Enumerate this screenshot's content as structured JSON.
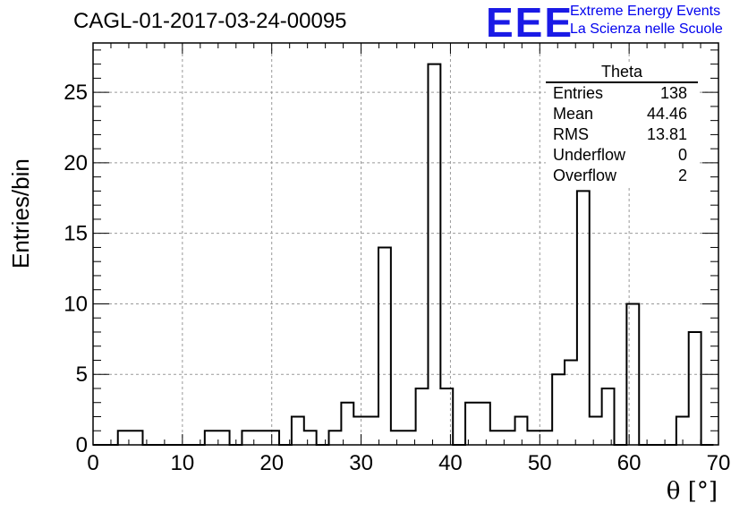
{
  "header": {
    "run_title": "CAGL-01-2017-03-24-00095",
    "logo": "EEE",
    "logo_line1": "Extreme Energy Events",
    "logo_line2": "La Scienza nelle Scuole"
  },
  "stats_box": {
    "title": "Theta",
    "rows": [
      {
        "label": "Entries",
        "value": "138"
      },
      {
        "label": "Mean",
        "value": "44.46"
      },
      {
        "label": "RMS",
        "value": "13.81"
      },
      {
        "label": "Underflow",
        "value": "0"
      },
      {
        "label": "Overflow",
        "value": "2"
      }
    ]
  },
  "chart_data": {
    "type": "bar",
    "histogram": true,
    "xlabel": "θ [°]",
    "ylabel": "Entries/bin",
    "xlim": [
      0,
      70
    ],
    "ylim": [
      0,
      28.5
    ],
    "grid": true,
    "x_ticks": [
      0,
      10,
      20,
      30,
      40,
      50,
      60,
      70
    ],
    "y_ticks": [
      0,
      5,
      10,
      15,
      20,
      25
    ],
    "bin_width": 1.3889,
    "values": [
      0,
      0,
      1,
      1,
      0,
      0,
      0,
      0,
      0,
      1,
      1,
      0,
      1,
      1,
      1,
      0,
      2,
      1,
      0,
      1,
      3,
      2,
      2,
      14,
      1,
      1,
      4,
      27,
      4,
      0,
      3,
      3,
      1,
      1,
      2,
      1,
      1,
      5,
      6,
      18,
      2,
      4,
      0,
      10,
      0,
      0,
      0,
      2,
      8,
      0
    ]
  },
  "colors": {
    "axis": "#000000",
    "grid": "#999999",
    "logo": "#1a1ae6"
  }
}
